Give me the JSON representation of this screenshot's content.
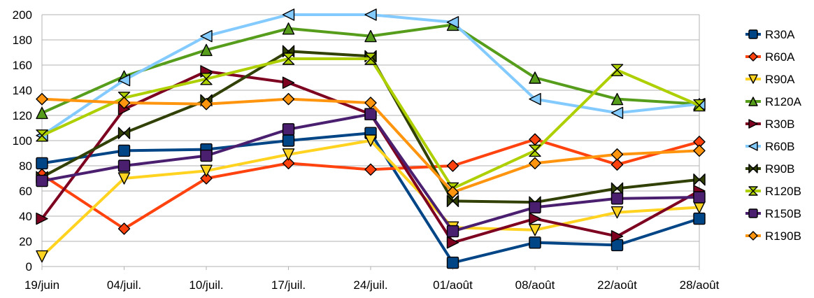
{
  "chart_data": {
    "type": "line",
    "title": "",
    "xlabel": "",
    "ylabel": "",
    "ylim": [
      0,
      200
    ],
    "yticks": [
      0,
      20,
      40,
      60,
      80,
      100,
      120,
      140,
      160,
      180,
      200
    ],
    "grid": "horizontal",
    "legend_position": "right",
    "categories": [
      "19/juin",
      "04/juil.",
      "10/juil.",
      "17/juil.",
      "24/juil.",
      "01/août",
      "08/août",
      "22/août",
      "28/août"
    ],
    "series": [
      {
        "name": "R30A",
        "color": "#004586",
        "marker": "square",
        "values": [
          82,
          92,
          93,
          100,
          106,
          3,
          19,
          17,
          38
        ]
      },
      {
        "name": "R60A",
        "color": "#FF420E",
        "marker": "diamond",
        "values": [
          73,
          30,
          70,
          82,
          77,
          80,
          101,
          81,
          99
        ]
      },
      {
        "name": "R90A",
        "color": "#FFD320",
        "marker": "triangle-down",
        "values": [
          8,
          70,
          76,
          89,
          100,
          31,
          29,
          43,
          47
        ]
      },
      {
        "name": "R120A",
        "color": "#579D1C",
        "marker": "triangle-up",
        "values": [
          122,
          151,
          172,
          189,
          183,
          192,
          150,
          133,
          129
        ]
      },
      {
        "name": "R30B",
        "color": "#7E0021",
        "marker": "triangle-right",
        "values": [
          38,
          125,
          155,
          146,
          121,
          19,
          38,
          24,
          60
        ]
      },
      {
        "name": "R60B",
        "color": "#83CAFF",
        "marker": "triangle-left",
        "values": [
          104,
          148,
          183,
          200,
          200,
          194,
          133,
          122,
          129
        ]
      },
      {
        "name": "R90B",
        "color": "#314004",
        "marker": "bowtie",
        "values": [
          71,
          106,
          132,
          171,
          167,
          52,
          51,
          62,
          69
        ]
      },
      {
        "name": "R120B",
        "color": "#AECF00",
        "marker": "hourglass",
        "values": [
          104,
          134,
          149,
          165,
          165,
          62,
          92,
          156,
          128
        ]
      },
      {
        "name": "R150B",
        "color": "#4B1F6F",
        "marker": "square",
        "values": [
          68,
          80,
          88,
          109,
          121,
          28,
          47,
          54,
          55
        ]
      },
      {
        "name": "R190B",
        "color": "#FF950E",
        "marker": "diamond",
        "values": [
          133,
          130,
          129,
          133,
          130,
          59,
          82,
          89,
          92
        ]
      }
    ]
  }
}
